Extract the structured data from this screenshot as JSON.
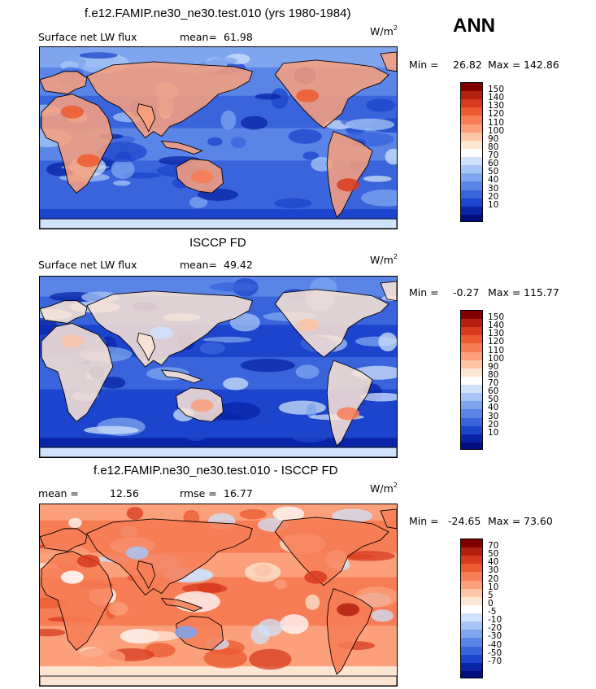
{
  "season": "ANN",
  "panels": [
    {
      "id": "model",
      "title": "f.e12.FAMIP.ne30_ne30.test.010 (yrs 1980-1984)",
      "left_label": "Surface net LW flux",
      "mean_label": "mean=",
      "mean_value": "61.98",
      "units": "W/m",
      "units_sup": "2",
      "min_label": "Min =",
      "min_value": "26.82",
      "max_label": "Max =",
      "max_value": "142.86",
      "colorbar": {
        "ticks": [
          "150",
          "140",
          "130",
          "120",
          "110",
          "100",
          "90",
          "80",
          "70",
          "60",
          "50",
          "40",
          "30",
          "20",
          "10"
        ],
        "colors": [
          "#800000",
          "#b3200e",
          "#d83a1e",
          "#ec5a2e",
          "#f77d55",
          "#fba07b",
          "#fdc4a6",
          "#fde5d3",
          "#ffffff",
          "#cfe2fb",
          "#a7c5f6",
          "#7fa5ef",
          "#5a84e6",
          "#3a64dc",
          "#1c44cc",
          "#0a24a8",
          "#000e80"
        ]
      },
      "palette": "positive"
    },
    {
      "id": "obs",
      "title": "ISCCP FD",
      "left_label": "Surface net LW flux",
      "mean_label": "mean=",
      "mean_value": "49.42",
      "units": "W/m",
      "units_sup": "2",
      "min_label": "Min =",
      "min_value": "-0.27",
      "max_label": "Max =",
      "max_value": "115.77",
      "colorbar": {
        "ticks": [
          "150",
          "140",
          "130",
          "120",
          "110",
          "100",
          "90",
          "80",
          "70",
          "60",
          "50",
          "40",
          "30",
          "20",
          "10"
        ],
        "colors": [
          "#800000",
          "#b3200e",
          "#d83a1e",
          "#ec5a2e",
          "#f77d55",
          "#fba07b",
          "#fdc4a6",
          "#fde5d3",
          "#ffffff",
          "#cfe2fb",
          "#a7c5f6",
          "#7fa5ef",
          "#5a84e6",
          "#3a64dc",
          "#1c44cc",
          "#0a24a8",
          "#000e80"
        ]
      },
      "palette": "positive"
    },
    {
      "id": "diff",
      "title": "f.e12.FAMIP.ne30_ne30.test.010 - ISCCP FD",
      "left_label": "mean =",
      "mean_label": "",
      "mean_value": "12.56",
      "rmse_label": "rmse =",
      "rmse_value": "16.77",
      "units": "W/m",
      "units_sup": "2",
      "min_label": "Min =",
      "min_value": "-24.65",
      "max_label": "Max =",
      "max_value": "73.60",
      "colorbar": {
        "ticks": [
          "70",
          "50",
          "40",
          "30",
          "20",
          "10",
          "5",
          "0",
          "-5",
          "-10",
          "-20",
          "-30",
          "-40",
          "-50",
          "-70"
        ],
        "colors": [
          "#800000",
          "#b3200e",
          "#d83a1e",
          "#ec5a2e",
          "#f77d55",
          "#fba07b",
          "#fdc4a6",
          "#fde5d3",
          "#ffffff",
          "#cfe2fb",
          "#a7c5f6",
          "#7fa5ef",
          "#5a84e6",
          "#3a64dc",
          "#1c44cc",
          "#0a24a8",
          "#000e80"
        ]
      },
      "palette": "diff"
    }
  ]
}
